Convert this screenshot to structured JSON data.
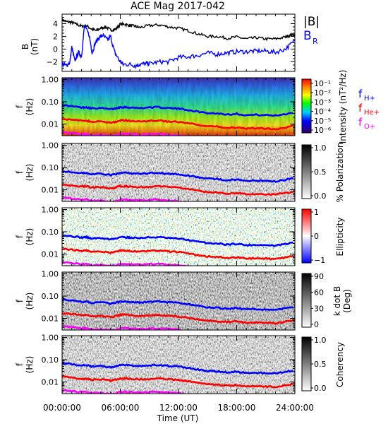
{
  "title": "ACE Mag 2017-042",
  "colors": {
    "B": "#000000",
    "BR": "#0000ff",
    "fH": "#0000ff",
    "fHe": "#ff0000",
    "fO": "#ff00ff"
  },
  "chart_data": {
    "type": "line",
    "x_ticks": [
      "00:00:00",
      "06:00:00",
      "12:00:00",
      "18:00:00",
      "24:00:00"
    ],
    "x_tick_hours": [
      0,
      6,
      12,
      18,
      24
    ],
    "xlabel": "Time (UT)",
    "xlim": [
      0,
      24
    ],
    "panels": [
      {
        "id": "b-field",
        "ylabel_lines": [
          "B",
          "(nT)"
        ],
        "ylim": [
          -3.5,
          5.5
        ],
        "y_ticks": [
          "4",
          "2",
          "0",
          "−2"
        ],
        "y_tick_values": [
          4,
          2,
          0,
          -2
        ],
        "legend": [
          "|B|",
          "B",
          "R"
        ],
        "series": [
          {
            "name": "|B|",
            "x": [
              0,
              0.5,
              1,
              1.5,
              2,
              2.5,
              3,
              3.5,
              4,
              4.5,
              5,
              5.5,
              6,
              6.5,
              7,
              7.5,
              8,
              9,
              10,
              11,
              12,
              13,
              14,
              15,
              16,
              17,
              18,
              19,
              20,
              21,
              22,
              23,
              23.5,
              24
            ],
            "y": [
              4.6,
              4.3,
              4.2,
              3.9,
              3.6,
              3.7,
              3.2,
              2.9,
              3.3,
              3.5,
              3.0,
              3.1,
              3.9,
              3.9,
              3.7,
              3.6,
              3.4,
              3.7,
              3.8,
              3.5,
              3.3,
              2.9,
              2.4,
              2.0,
              2.0,
              1.7,
              1.9,
              1.6,
              1.8,
              1.6,
              1.6,
              1.9,
              2.2,
              2.3
            ]
          },
          {
            "name": "B R",
            "x": [
              0,
              0.4,
              0.8,
              1,
              1.3,
              1.7,
              2,
              2.3,
              2.8,
              3.1,
              3.4,
              3.8,
              4.2,
              4.7,
              5,
              5.4,
              5.9,
              6.3,
              7,
              7.6,
              8,
              8.6,
              9,
              10,
              11,
              12,
              13,
              14,
              15,
              16,
              17,
              18,
              19,
              20,
              21,
              22,
              23,
              24
            ],
            "y": [
              -2.3,
              -2.6,
              -2.1,
              0.3,
              -1.8,
              -0.5,
              -1.2,
              3.6,
              2.2,
              -0.6,
              0.9,
              1.8,
              2.2,
              1.4,
              2.0,
              -0.4,
              -1.8,
              -2.4,
              -2.4,
              -2.6,
              -2.4,
              -2.3,
              -2.3,
              -2.0,
              -2.0,
              -1.3,
              -1.2,
              -1.0,
              -0.6,
              -0.8,
              -0.6,
              -0.4,
              -0.4,
              -0.3,
              -0.3,
              -0.5,
              0.0,
              1.3
            ]
          }
        ]
      },
      {
        "id": "intensity",
        "ylabel_lines": [
          "f",
          "(Hz)"
        ],
        "colorbar": {
          "label": "Intensity (nT²/Hz)",
          "ticks": [
            "10⁻¹",
            "10⁻²",
            "10⁻³",
            "10⁻⁴",
            "10⁻⁵",
            "10⁻⁶"
          ]
        },
        "legend": [
          "f",
          "H+",
          "f",
          "He+",
          "f",
          "O+"
        ]
      },
      {
        "id": "polarization",
        "ylabel_lines": [
          "f",
          "(Hz)"
        ],
        "colorbar": {
          "label": "% Polarization",
          "ticks": [
            "1.0",
            "0.5",
            "0.0"
          ]
        }
      },
      {
        "id": "ellipticity",
        "ylabel_lines": [
          "f",
          "(Hz)"
        ],
        "colorbar": {
          "label": "Ellipticity",
          "ticks": [
            "1",
            "0",
            "−1"
          ]
        }
      },
      {
        "id": "kdotb",
        "ylabel_lines": [
          "f",
          "(Hz)"
        ],
        "colorbar": {
          "label_lines": [
            "k dot B",
            "(Deg)"
          ],
          "ticks": [
            "90",
            "60",
            "30",
            "0"
          ]
        }
      },
      {
        "id": "coherency",
        "ylabel_lines": [
          "f",
          "(Hz)"
        ],
        "colorbar": {
          "label": "Coherency",
          "ticks": [
            "1.0",
            "0.5",
            "0.0"
          ]
        }
      }
    ],
    "freq_ylim": [
      0.003,
      1.2
    ],
    "freq_ticks": [
      "1.00",
      "0.10",
      "0.01"
    ],
    "freq_tick_values": [
      1.0,
      0.1,
      0.01
    ],
    "gyro_lines": [
      {
        "name": "f H+",
        "x": [
          0,
          1,
          2,
          2.5,
          3,
          4,
          5,
          5.5,
          6,
          6.5,
          7,
          8,
          9,
          10,
          11,
          12,
          13,
          14,
          15,
          16,
          17,
          18,
          19,
          20,
          21,
          22,
          23,
          24
        ],
        "y": [
          0.07,
          0.063,
          0.055,
          0.058,
          0.05,
          0.052,
          0.046,
          0.05,
          0.058,
          0.058,
          0.055,
          0.052,
          0.056,
          0.057,
          0.052,
          0.049,
          0.043,
          0.036,
          0.031,
          0.03,
          0.027,
          0.029,
          0.025,
          0.026,
          0.025,
          0.024,
          0.028,
          0.034
        ]
      },
      {
        "name": "f He+",
        "x": [
          0,
          1,
          2,
          2.5,
          3,
          4,
          5,
          5.5,
          6,
          6.5,
          7,
          8,
          9,
          10,
          11,
          12,
          13,
          14,
          15,
          16,
          17,
          18,
          19,
          20,
          21,
          22,
          23,
          24
        ],
        "y": [
          0.0175,
          0.0158,
          0.0138,
          0.0145,
          0.0125,
          0.013,
          0.0115,
          0.0125,
          0.0145,
          0.0145,
          0.0138,
          0.013,
          0.014,
          0.0143,
          0.013,
          0.0122,
          0.0108,
          0.009,
          0.0078,
          0.0075,
          0.0068,
          0.0072,
          0.0063,
          0.0065,
          0.0063,
          0.006,
          0.007,
          0.0085
        ]
      },
      {
        "name": "f O+",
        "x": [
          0,
          1,
          2,
          2.5,
          3,
          4,
          5,
          5.5,
          6,
          6.5,
          7,
          8,
          9,
          10,
          11,
          12,
          13,
          14,
          15,
          16,
          17,
          18,
          19,
          20,
          21,
          22,
          23,
          24
        ],
        "y": [
          0.0044,
          0.004,
          0.0035,
          0.0036,
          0.0031,
          0.0033,
          0.0029,
          0.0031,
          0.0036,
          0.0036,
          0.0035,
          0.0033,
          0.0035,
          0.0036,
          0.0033,
          0.0031,
          0.0027,
          0.0023,
          0.002,
          0.0019,
          0.0017,
          0.0018,
          0.0016,
          0.0016,
          0.0016,
          0.0015,
          0.0018,
          0.0021
        ]
      }
    ]
  }
}
